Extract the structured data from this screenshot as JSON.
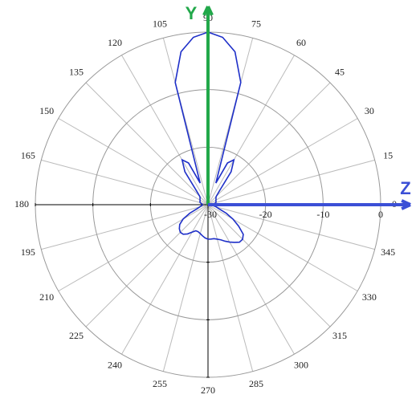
{
  "chart_data": {
    "type": "polar",
    "theta": [
      0,
      5,
      10,
      15,
      20,
      25,
      30,
      35,
      40,
      45,
      50,
      55,
      60,
      65,
      70,
      75,
      80,
      85,
      90,
      95,
      100,
      105,
      110,
      115,
      120,
      125,
      130,
      135,
      140,
      145,
      150,
      155,
      160,
      165,
      170,
      175,
      180,
      185,
      190,
      195,
      200,
      205,
      210,
      215,
      220,
      225,
      230,
      235,
      240,
      245,
      250,
      255,
      260,
      265,
      270,
      275,
      280,
      285,
      290,
      295,
      300,
      305,
      310,
      315,
      320,
      325,
      330,
      335,
      340,
      345,
      350,
      355
    ],
    "values": [
      -29,
      -29,
      -28.8,
      -28.6,
      -28.5,
      -28.5,
      -28.4,
      -28.3,
      -28.2,
      -28,
      -27,
      -23,
      -21,
      -22,
      -26,
      -8,
      -3,
      -0.8,
      0,
      -0.8,
      -3,
      -8,
      -26,
      -22,
      -21,
      -23,
      -27,
      -28,
      -28.2,
      -28.3,
      -28.4,
      -28.5,
      -28.5,
      -28.6,
      -28.8,
      -29,
      -29,
      -29,
      -28.8,
      -28.5,
      -28,
      -26.5,
      -25,
      -24,
      -23.5,
      -23.2,
      -23.3,
      -23.8,
      -24.5,
      -25,
      -25,
      -24.8,
      -24.5,
      -24.2,
      -24,
      -24,
      -24,
      -23.8,
      -23.5,
      -23,
      -22.5,
      -22,
      -21.5,
      -21.5,
      -22,
      -23.5,
      -25,
      -26.5,
      -28,
      -28.5,
      -29,
      -29
    ],
    "color": "#1e2fc8",
    "rlim": [
      -30,
      0
    ],
    "rticks": [
      -30,
      -20,
      -10,
      0
    ],
    "thetaticks": [
      0,
      15,
      30,
      45,
      60,
      75,
      90,
      105,
      120,
      135,
      150,
      165,
      180,
      195,
      210,
      225,
      240,
      255,
      270,
      285,
      300,
      315,
      330,
      345
    ],
    "axis_arrows": [
      {
        "label": "Y",
        "angle": 90,
        "color": "#22a84a"
      },
      {
        "label": "Z",
        "angle": 0,
        "color": "#3b4fd6"
      }
    ]
  }
}
